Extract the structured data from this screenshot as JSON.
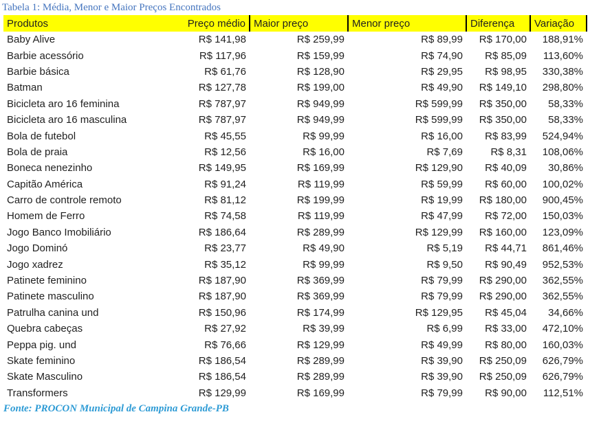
{
  "title": "Tabela 1: Média, Menor e Maior Preços Encontrados",
  "source": "Fonte: PROCON Municipal de Campina Grande-PB",
  "colors": {
    "header_bg": "#FFFF00",
    "header_border": "#000000",
    "title_text": "#4575BE",
    "source_text": "#2E9BD5",
    "body_text": "#1F1F1F"
  },
  "chart_data": {
    "type": "table",
    "title": "Tabela 1: Média, Menor e Maior Preços Encontrados",
    "source": "Fonte: PROCON Municipal de Campina Grande-PB",
    "columns": [
      "Produtos",
      "Preço médio",
      "Maior preço",
      "Menor preço",
      "Diferença",
      "Variação"
    ],
    "column_keys": [
      "produto",
      "preco-medio",
      "maior-preco",
      "menor-preco",
      "diferenca",
      "variacao"
    ],
    "rows": [
      [
        "Baby Alive",
        "R$ 141,98",
        "R$ 259,99",
        "R$ 89,99",
        "R$ 170,00",
        "188,91%"
      ],
      [
        "Barbie acessório",
        "R$ 117,96",
        "R$ 159,99",
        "R$ 74,90",
        "R$ 85,09",
        "113,60%"
      ],
      [
        "Barbie básica",
        "R$ 61,76",
        "R$ 128,90",
        "R$ 29,95",
        "R$ 98,95",
        "330,38%"
      ],
      [
        "Batman",
        "R$ 127,78",
        "R$ 199,00",
        "R$ 49,90",
        "R$ 149,10",
        "298,80%"
      ],
      [
        "Bicicleta aro 16 feminina",
        "R$ 787,97",
        "R$ 949,99",
        "R$ 599,99",
        "R$ 350,00",
        "58,33%"
      ],
      [
        "Bicicleta aro 16 masculina",
        "R$ 787,97",
        "R$ 949,99",
        "R$ 599,99",
        "R$ 350,00",
        "58,33%"
      ],
      [
        "Bola de futebol",
        "R$ 45,55",
        "R$ 99,99",
        "R$ 16,00",
        "R$ 83,99",
        "524,94%"
      ],
      [
        "Bola de praia",
        "R$ 12,56",
        "R$ 16,00",
        "R$ 7,69",
        "R$ 8,31",
        "108,06%"
      ],
      [
        "Boneca nenezinho",
        "R$ 149,95",
        "R$ 169,99",
        "R$ 129,90",
        "R$ 40,09",
        "30,86%"
      ],
      [
        "Capitão América",
        "R$ 91,24",
        "R$ 119,99",
        "R$ 59,99",
        "R$ 60,00",
        "100,02%"
      ],
      [
        "Carro de controle remoto",
        "R$ 81,12",
        "R$ 199,99",
        "R$ 19,99",
        "R$ 180,00",
        "900,45%"
      ],
      [
        "Homem de Ferro",
        "R$ 74,58",
        "R$ 119,99",
        "R$ 47,99",
        "R$ 72,00",
        "150,03%"
      ],
      [
        "Jogo Banco Imobiliário",
        "R$ 186,64",
        "R$ 289,99",
        "R$ 129,99",
        "R$ 160,00",
        "123,09%"
      ],
      [
        "Jogo Dominó",
        "R$ 23,77",
        "R$ 49,90",
        "R$ 5,19",
        "R$ 44,71",
        "861,46%"
      ],
      [
        "Jogo xadrez",
        "R$ 35,12",
        "R$ 99,99",
        "R$ 9,50",
        "R$ 90,49",
        "952,53%"
      ],
      [
        "Patinete feminino",
        "R$ 187,90",
        "R$ 369,99",
        "R$ 79,99",
        "R$ 290,00",
        "362,55%"
      ],
      [
        "Patinete masculino",
        "R$ 187,90",
        "R$ 369,99",
        "R$ 79,99",
        "R$ 290,00",
        "362,55%"
      ],
      [
        "Patrulha canina und",
        "R$ 150,96",
        "R$ 174,99",
        "R$ 129,95",
        "R$ 45,04",
        "34,66%"
      ],
      [
        "Quebra cabeças",
        "R$ 27,92",
        "R$ 39,99",
        "R$ 6,99",
        "R$ 33,00",
        "472,10%"
      ],
      [
        "Peppa pig. und",
        "R$ 76,66",
        "R$ 129,99",
        "R$ 49,99",
        "R$ 80,00",
        "160,03%"
      ],
      [
        "Skate feminino",
        "R$ 186,54",
        "R$ 289,99",
        "R$ 39,90",
        "R$ 250,09",
        "626,79%"
      ],
      [
        "Skate Masculino",
        "R$ 186,54",
        "R$ 289,99",
        "R$ 39,90",
        "R$ 250,09",
        "626,79%"
      ],
      [
        "Transformers",
        "R$ 129,99",
        "R$ 169,99",
        "R$ 79,99",
        "R$ 90,00",
        "112,51%"
      ]
    ]
  }
}
